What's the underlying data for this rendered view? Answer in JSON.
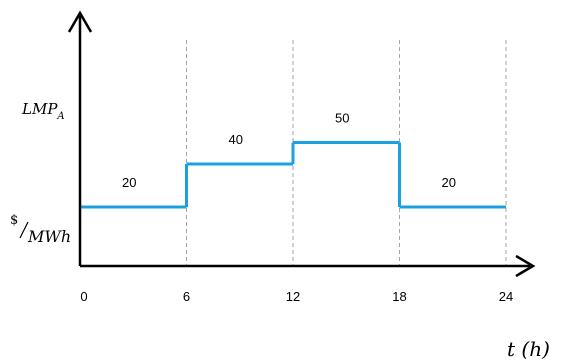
{
  "chart_data": {
    "type": "line",
    "step": true,
    "x": [
      0,
      6,
      12,
      18,
      24
    ],
    "segments": [
      {
        "x_start": 0,
        "x_end": 6,
        "value": 20
      },
      {
        "x_start": 6,
        "x_end": 12,
        "value": 40
      },
      {
        "x_start": 12,
        "x_end": 18,
        "value": 50
      },
      {
        "x_start": 18,
        "x_end": 24,
        "value": 20
      }
    ],
    "value_labels": [
      "20",
      "40",
      "50",
      "20"
    ],
    "tick_labels": [
      "0",
      "6",
      "12",
      "18",
      "24"
    ],
    "xlabel": "t (h)",
    "ylabel_top": "LMP",
    "ylabel_top_subscript": "A",
    "ylabel_unit_numerator": "$",
    "ylabel_unit_denominator": "MWh",
    "xlim": [
      0,
      24
    ],
    "gridlines": "vertical dashed at each tick",
    "line_color": "#1BA1E2",
    "grid_color": "#A6A6A6",
    "axis_color": "#000000"
  }
}
